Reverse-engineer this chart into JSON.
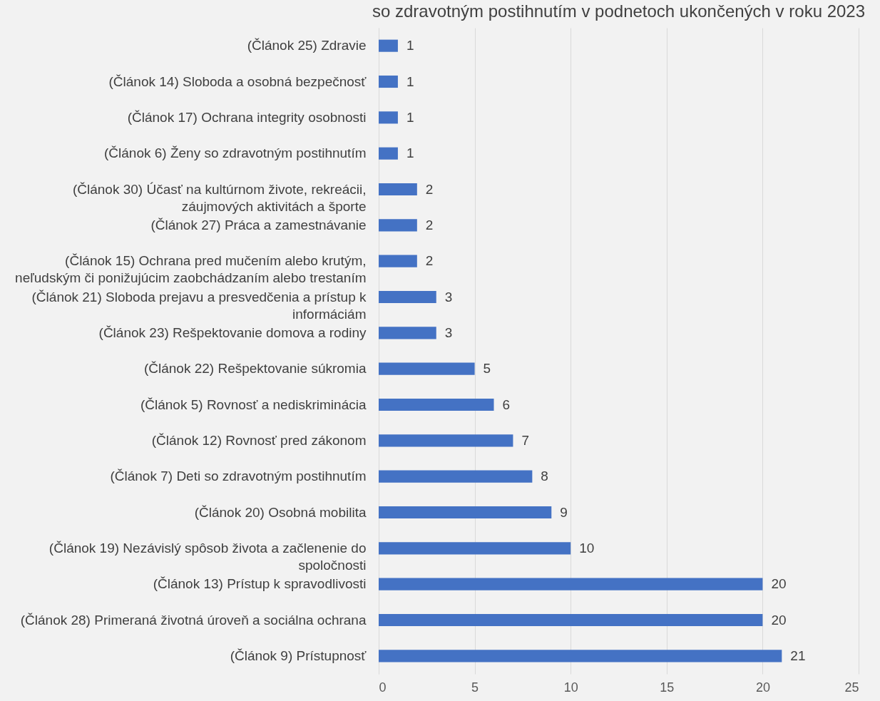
{
  "chart_data": {
    "type": "bar",
    "orientation": "horizontal",
    "title": "so zdravotným postihnutím v podnetoch ukončených v roku 2023",
    "categories": [
      "(Článok 25) Zdravie",
      "(Článok 14) Sloboda a osobná bezpečnosť",
      "(Článok 17) Ochrana integrity osobnosti",
      "(Článok 6) Ženy so zdravotným postihnutím",
      "(Článok 30) Účasť na kultúrnom živote, rekreácii, záujmových aktivitách a športe",
      "(Článok 27) Práca a zamestnávanie",
      "(Článok 15) Ochrana pred mučením alebo krutým, neľudským či ponižujúcim zaobchádzaním alebo trestaním",
      "(Článok 21) Sloboda prejavu a presvedčenia a prístup k informáciám",
      "(Článok 23) Rešpektovanie domova a rodiny",
      "(Článok 22) Rešpektovanie súkromia",
      "(Článok 5) Rovnosť a nediskriminácia",
      "(Článok 12) Rovnosť pred zákonom",
      "(Článok 7) Deti so zdravotným postihnutím",
      "(Článok 20) Osobná mobilita",
      "(Článok 19) Nezávislý spôsob života a začlenenie do spoločnosti",
      "(Článok 13) Prístup k spravodlivosti",
      "(Článok 28) Primeraná životná úroveň a sociálna ochrana",
      "(Článok 9) Prístupnosť"
    ],
    "values": [
      1,
      1,
      1,
      1,
      2,
      2,
      2,
      3,
      3,
      5,
      6,
      7,
      8,
      9,
      10,
      20,
      20,
      21
    ],
    "color": "#4472c4",
    "xlim": [
      0,
      25
    ],
    "xticks": [
      0,
      5,
      10,
      15,
      20,
      25
    ],
    "grid": "x",
    "data_labels": true
  }
}
